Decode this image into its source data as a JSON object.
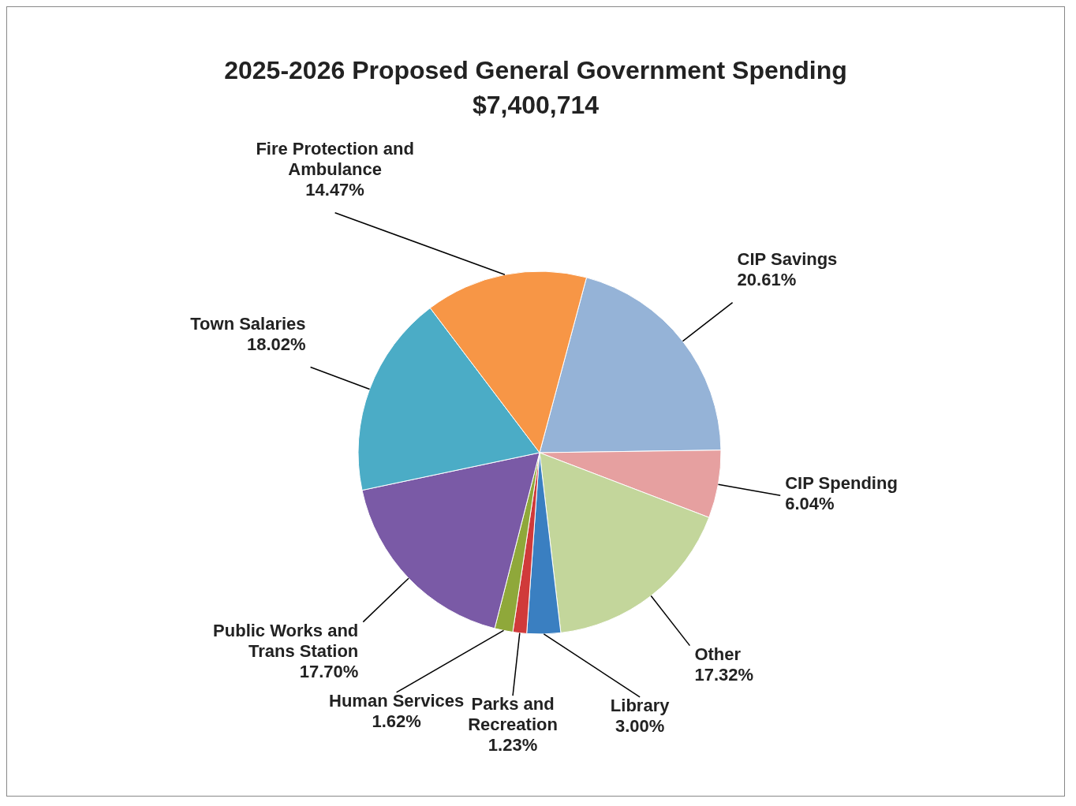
{
  "chart_data": {
    "type": "pie",
    "title": "2025-2026 Proposed General Government Spending",
    "subtitle": "$7,400,714",
    "categories": [
      "CIP Savings",
      "CIP Spending",
      "Other",
      "Library",
      "Parks and Recreation",
      "Human Services",
      "Public Works and Trans Station",
      "Town Salaries",
      "Fire Protection and Ambulance"
    ],
    "values": [
      20.61,
      6.04,
      17.32,
      3.0,
      1.23,
      1.62,
      17.7,
      18.02,
      14.47
    ],
    "value_labels": [
      "20.61%",
      "6.04%",
      "17.32%",
      "3.00%",
      "1.23%",
      "1.62%",
      "17.70%",
      "18.02%",
      "14.47%"
    ],
    "colors": [
      "#95b3d7",
      "#e6a0a0",
      "#c3d69b",
      "#3a7fc1",
      "#d03a3a",
      "#8fa83a",
      "#7a5aa6",
      "#4bacc6",
      "#f79646"
    ]
  }
}
